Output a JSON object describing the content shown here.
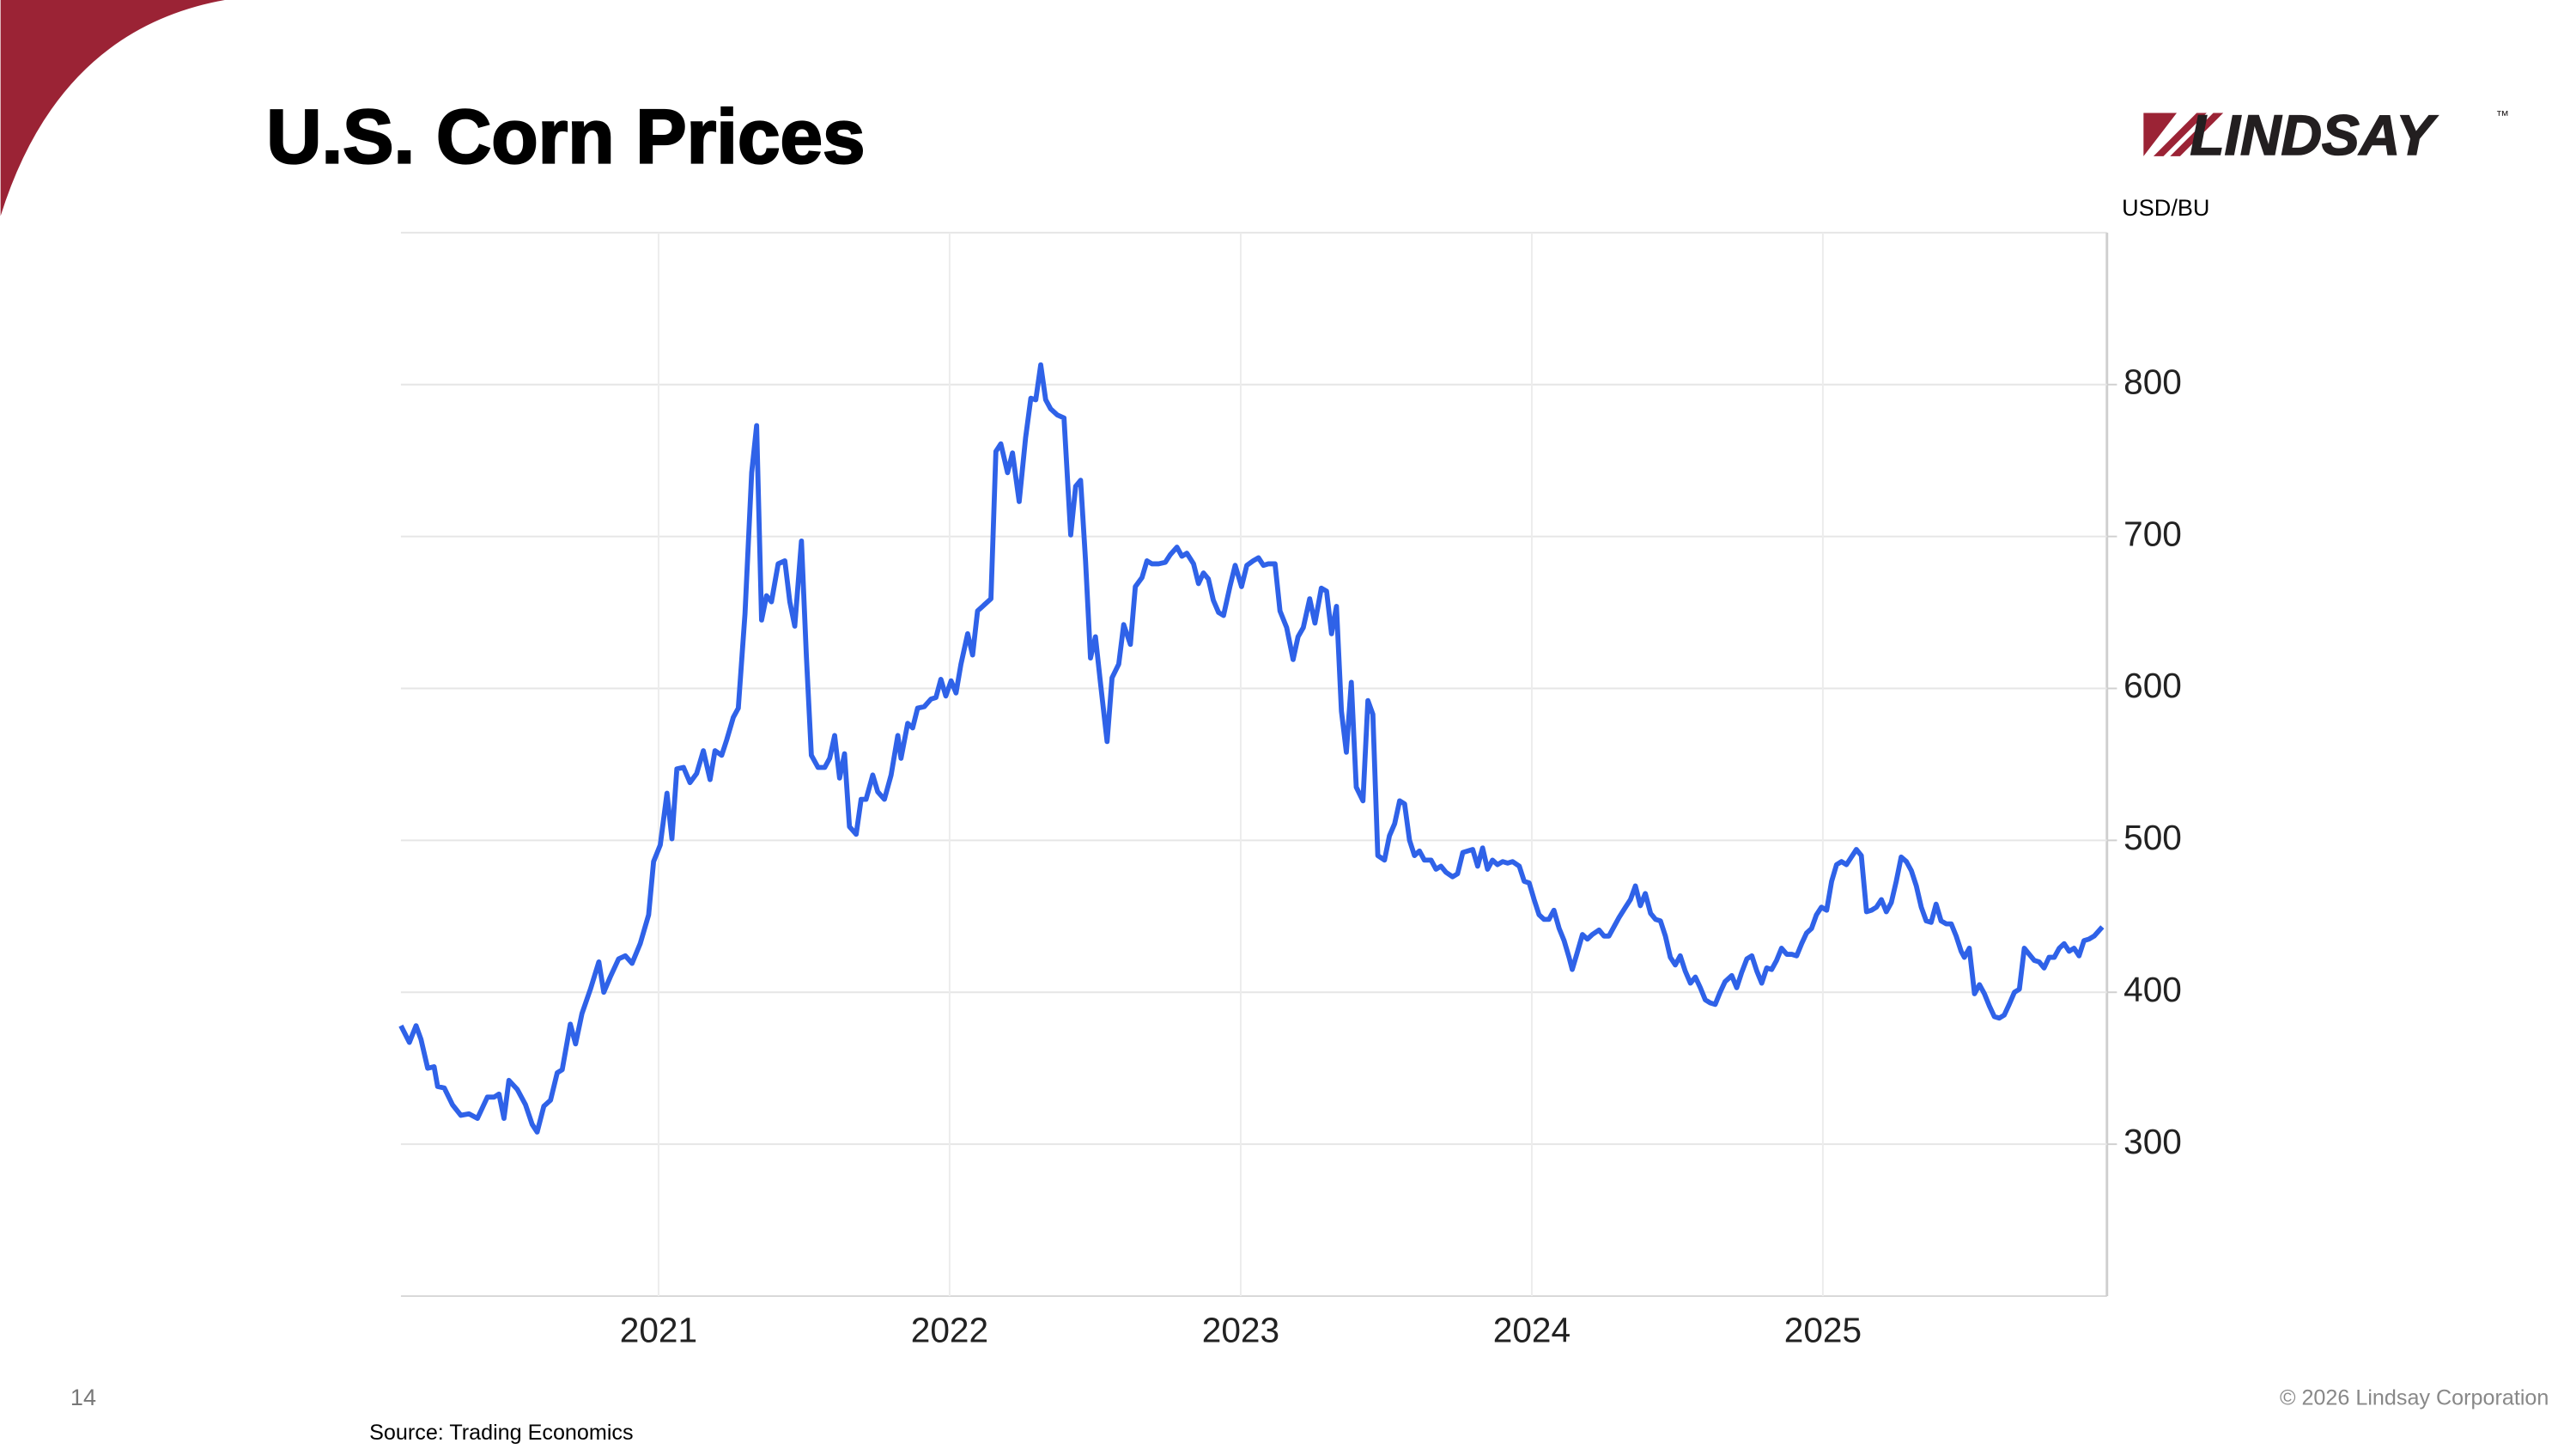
{
  "slide": {
    "page_number": "14",
    "copyright": "© 2026 Lindsay Corporation",
    "logo": "LINDSAY",
    "logo_mark": "™"
  },
  "chart_data": {
    "type": "line",
    "title": "U.S. Corn Prices",
    "ylabel": "USD/BU",
    "source": "Source: Trading Economics",
    "color": "#2f62e8",
    "grid": true,
    "xlim": [
      2020.115,
      2025.976
    ],
    "xticks": [
      2021,
      2022,
      2023,
      2024,
      2025
    ],
    "ylim": [
      200,
      900
    ],
    "yticks": [
      300,
      400,
      500,
      600,
      700,
      800
    ],
    "x": [
      2020.115,
      2020.144,
      2020.167,
      2020.184,
      2020.207,
      2020.229,
      2020.241,
      2020.264,
      2020.292,
      2020.321,
      2020.349,
      2020.378,
      2020.412,
      2020.435,
      2020.452,
      2020.469,
      2020.486,
      2020.515,
      2020.543,
      2020.566,
      2020.583,
      2020.606,
      2020.629,
      2020.652,
      2020.669,
      2020.697,
      2020.715,
      2020.737,
      2020.766,
      2020.795,
      2020.812,
      2020.834,
      2020.863,
      2020.886,
      2020.909,
      2020.937,
      2020.966,
      2020.983,
      2021.006,
      2021.029,
      2021.046,
      2021.063,
      2021.086,
      2021.108,
      2021.131,
      2021.154,
      2021.177,
      2021.194,
      2021.217,
      2021.234,
      2021.257,
      2021.274,
      2021.297,
      2021.32,
      2021.337,
      2021.354,
      2021.371,
      2021.388,
      2021.411,
      2021.434,
      2021.451,
      2021.468,
      2021.491,
      2021.508,
      2021.525,
      2021.548,
      2021.571,
      2021.588,
      2021.605,
      2021.622,
      2021.639,
      2021.656,
      2021.679,
      2021.696,
      2021.713,
      2021.736,
      2021.753,
      2021.776,
      2021.799,
      2021.822,
      2021.833,
      2021.856,
      2021.873,
      2021.89,
      2021.913,
      2021.936,
      2021.953,
      2021.97,
      2021.987,
      2022.005,
      2022.022,
      2022.039,
      2022.062,
      2022.079,
      2022.096,
      2022.119,
      2022.142,
      2022.159,
      2022.176,
      2022.199,
      2022.216,
      2022.239,
      2022.261,
      2022.279,
      2022.296,
      2022.313,
      2022.33,
      2022.347,
      2022.37,
      2022.393,
      2022.416,
      2022.433,
      2022.45,
      2022.467,
      2022.484,
      2022.501,
      2022.518,
      2022.541,
      2022.558,
      2022.581,
      2022.598,
      2022.621,
      2022.638,
      2022.661,
      2022.678,
      2022.695,
      2022.718,
      2022.741,
      2022.758,
      2022.781,
      2022.798,
      2022.815,
      2022.838,
      2022.855,
      2022.872,
      2022.889,
      2022.906,
      2022.924,
      2022.941,
      2022.963,
      2022.981,
      2023.003,
      2023.021,
      2023.043,
      2023.061,
      2023.078,
      2023.095,
      2023.118,
      2023.135,
      2023.158,
      2023.18,
      2023.197,
      2023.215,
      2023.237,
      2023.255,
      2023.277,
      2023.295,
      2023.312,
      2023.329,
      2023.346,
      2023.363,
      2023.38,
      2023.397,
      2023.42,
      2023.437,
      2023.454,
      2023.471,
      2023.494,
      2023.511,
      2023.529,
      2023.546,
      2023.563,
      2023.58,
      2023.597,
      2023.614,
      2023.631,
      2023.654,
      2023.671,
      2023.688,
      2023.705,
      2023.728,
      2023.745,
      2023.763,
      2023.78,
      2023.797,
      2023.814,
      2023.831,
      2023.848,
      2023.865,
      2023.882,
      2023.9,
      2023.917,
      2023.934,
      2023.957,
      2023.974,
      2023.991,
      2024.008,
      2024.025,
      2024.042,
      2024.059,
      2024.076,
      2024.094,
      2024.111,
      2024.128,
      2024.139,
      2024.156,
      2024.174,
      2024.191,
      2024.208,
      2024.231,
      2024.248,
      2024.265,
      2024.282,
      2024.299,
      2024.322,
      2024.339,
      2024.356,
      2024.373,
      2024.39,
      2024.408,
      2024.425,
      2024.442,
      2024.459,
      2024.476,
      2024.493,
      2024.51,
      2024.527,
      2024.545,
      2024.562,
      2024.579,
      2024.596,
      2024.613,
      2024.63,
      2024.647,
      2024.664,
      2024.687,
      2024.704,
      2024.721,
      2024.739,
      2024.756,
      2024.773,
      2024.79,
      2024.807,
      2024.824,
      2024.841,
      2024.858,
      2024.876,
      2024.893,
      2024.91,
      2024.927,
      2024.944,
      2024.961,
      2024.978,
      2024.995,
      2025.013,
      2025.03,
      2025.047,
      2025.064,
      2025.081,
      2025.098,
      2025.115,
      2025.132,
      2025.15,
      2025.167,
      2025.184,
      2025.201,
      2025.218,
      2025.235,
      2025.252,
      2025.269,
      2025.287,
      2025.304,
      2025.321,
      2025.338,
      2025.355,
      2025.372,
      2025.389,
      2025.406,
      2025.424,
      2025.441,
      2025.458,
      2025.475,
      2025.486,
      2025.503,
      2025.521,
      2025.538,
      2025.555,
      2025.572,
      2025.589,
      2025.606,
      2025.623,
      2025.64,
      2025.658,
      2025.675,
      2025.692,
      2025.709,
      2025.726,
      2025.743,
      2025.76,
      2025.777,
      2025.795,
      2025.812,
      2025.829,
      2025.846,
      2025.863,
      2025.88,
      2025.897,
      2025.914,
      2025.932,
      2025.96
    ],
    "values": [
      378,
      367,
      378,
      369,
      350,
      351,
      338,
      337,
      326,
      319,
      320,
      317,
      331,
      331,
      333,
      317,
      342,
      336,
      326,
      313,
      308,
      325,
      329,
      347,
      349,
      379,
      366,
      386,
      402,
      420,
      400,
      410,
      422,
      424,
      419,
      432,
      451,
      486,
      497,
      531,
      501,
      547,
      548,
      538,
      544,
      559,
      540,
      559,
      556,
      566,
      581,
      587,
      649,
      742,
      773,
      645,
      661,
      657,
      682,
      684,
      657,
      641,
      697,
      621,
      556,
      548,
      548,
      554,
      569,
      541,
      557,
      509,
      504,
      527,
      527,
      543,
      532,
      527,
      543,
      569,
      554,
      577,
      574,
      587,
      588,
      593,
      594,
      606,
      595,
      605,
      597,
      616,
      636,
      622,
      651,
      655,
      659,
      756,
      761,
      742,
      755,
      723,
      765,
      791,
      790,
      813,
      790,
      784,
      780,
      778,
      701,
      733,
      737,
      684,
      620,
      634,
      604,
      565,
      607,
      616,
      642,
      629,
      667,
      673,
      684,
      682,
      682,
      683,
      688,
      693,
      687,
      689,
      682,
      669,
      676,
      672,
      658,
      650,
      648,
      667,
      681,
      667,
      681,
      684,
      686,
      681,
      682,
      682,
      651,
      640,
      619,
      634,
      640,
      659,
      643,
      666,
      664,
      636,
      654,
      585,
      558,
      604,
      535,
      526,
      592,
      583,
      490,
      487,
      503,
      511,
      526,
      524,
      500,
      490,
      493,
      487,
      487,
      481,
      483,
      479,
      476,
      478,
      492,
      493,
      494,
      483,
      495,
      481,
      487,
      484,
      486,
      485,
      486,
      483,
      473,
      472,
      461,
      451,
      448,
      448,
      454,
      442,
      434,
      423,
      415,
      426,
      438,
      435,
      438,
      441,
      437,
      437,
      443,
      449,
      456,
      461,
      470,
      457,
      465,
      452,
      448,
      447,
      437,
      423,
      418,
      424,
      414,
      406,
      410,
      403,
      395,
      393,
      392,
      400,
      407,
      411,
      403,
      413,
      422,
      424,
      414,
      406,
      416,
      415,
      421,
      429,
      425,
      425,
      424,
      432,
      439,
      442,
      451,
      456,
      454,
      473,
      484,
      486,
      484,
      489,
      494,
      490,
      453,
      454,
      456,
      461,
      453,
      459,
      473,
      489,
      486,
      480,
      470,
      456,
      447,
      446,
      458,
      447,
      445,
      445,
      437,
      427,
      423,
      429,
      399,
      405,
      399,
      391,
      384,
      383,
      385,
      392,
      400,
      402,
      429,
      425,
      421,
      420,
      416,
      423,
      423,
      429,
      432,
      427,
      429,
      424,
      434,
      435,
      437,
      443
    ]
  }
}
